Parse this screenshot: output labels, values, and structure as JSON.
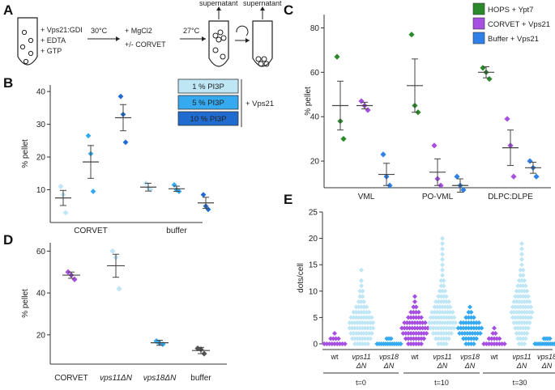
{
  "panel_labels": [
    "A",
    "B",
    "C",
    "D",
    "E"
  ],
  "panelA": {
    "tube1_lines": [
      "+ Vps21:GDI",
      "+ EDTA",
      "+ GTP"
    ],
    "step1_temp": "30°C",
    "step2_add": [
      "+ MgCl2",
      "+/- CORVET"
    ],
    "step2_temp": "27°C",
    "supernatant_1": "supernatant",
    "supernatant_2": "supernatant"
  },
  "chart_data": [
    {
      "id": "B",
      "type": "scatter",
      "ylabel": "% pellet",
      "ylim": [
        0,
        42
      ],
      "yticks": [
        10,
        20,
        30,
        40
      ],
      "groups": [
        "CORVET",
        "buffer"
      ],
      "legend": [
        "1 % PI3P",
        "5 % PI3P",
        "10 % PI3P"
      ],
      "legend_suffix": "+ Vps21",
      "colors": [
        "#bfe6f5",
        "#36aaf0",
        "#1f6bd0"
      ],
      "series": [
        {
          "group": "CORVET",
          "name": "1 % PI3P",
          "points": [
            11,
            8.5,
            3
          ],
          "mean": 7.5,
          "sem": 2.3
        },
        {
          "group": "CORVET",
          "name": "5 % PI3P",
          "points": [
            26.5,
            21,
            9.5
          ],
          "mean": 18.5,
          "sem": 5.0
        },
        {
          "group": "CORVET",
          "name": "10 % PI3P",
          "points": [
            38.5,
            33,
            24.5
          ],
          "mean": 32,
          "sem": 4.0
        },
        {
          "group": "buffer",
          "name": "1 % PI3P",
          "points": [
            12,
            10.5,
            10
          ],
          "mean": 10.8,
          "sem": 1.2
        },
        {
          "group": "buffer",
          "name": "5 % PI3P",
          "points": [
            11.5,
            10,
            9.5
          ],
          "mean": 10.3,
          "sem": 0.8
        },
        {
          "group": "buffer",
          "name": "10 % PI3P",
          "points": [
            8.5,
            5,
            4
          ],
          "mean": 6,
          "sem": 1.7
        }
      ]
    },
    {
      "id": "C",
      "type": "scatter",
      "ylabel": "% pellet",
      "ylim": [
        8,
        86
      ],
      "yticks": [
        20,
        40,
        60,
        80
      ],
      "groups": [
        "VML",
        "PO-VML",
        "DLPC:DLPE"
      ],
      "legend": [
        "HOPS + Ypt7",
        "CORVET + Vps21",
        "Buffer + Vps21"
      ],
      "colors": [
        "#2a8a2a",
        "#a64fe0",
        "#2f80e8"
      ],
      "series": [
        {
          "group": "VML",
          "name": "HOPS + Ypt7",
          "points": [
            67,
            38,
            30
          ],
          "mean": 45,
          "sem": 11
        },
        {
          "group": "VML",
          "name": "CORVET + Vps21",
          "points": [
            47,
            45,
            43
          ],
          "mean": 45,
          "sem": 1.5
        },
        {
          "group": "VML",
          "name": "Buffer + Vps21",
          "points": [
            23,
            13,
            9
          ],
          "mean": 14,
          "sem": 5
        },
        {
          "group": "PO-VML",
          "name": "HOPS + Ypt7",
          "points": [
            77,
            45,
            42
          ],
          "mean": 54,
          "sem": 12
        },
        {
          "group": "PO-VML",
          "name": "CORVET + Vps21",
          "points": [
            27,
            12,
            9
          ],
          "mean": 15,
          "sem": 6
        },
        {
          "group": "PO-VML",
          "name": "Buffer + Vps21",
          "points": [
            13,
            9,
            7
          ],
          "mean": 9,
          "sem": 3
        },
        {
          "group": "DLPC:DLPE",
          "name": "HOPS + Ypt7",
          "points": [
            62,
            60,
            57
          ],
          "mean": 60,
          "sem": 2.5
        },
        {
          "group": "DLPC:DLPE",
          "name": "CORVET + Vps21",
          "points": [
            39,
            27,
            13
          ],
          "mean": 26,
          "sem": 8
        },
        {
          "group": "DLPC:DLPE",
          "name": "Buffer + Vps21",
          "points": [
            20,
            17,
            13
          ],
          "mean": 17,
          "sem": 2.5
        }
      ]
    },
    {
      "id": "D",
      "type": "scatter",
      "ylabel": "% pellet",
      "ylim": [
        6,
        64
      ],
      "yticks": [
        20,
        40,
        60
      ],
      "categories": [
        "CORVET",
        "vps11ΔN",
        "vps18ΔN",
        "buffer"
      ],
      "colors": [
        "#a64fe0",
        "#bfe6f5",
        "#36aaf0",
        "#555555"
      ],
      "series": [
        {
          "name": "CORVET",
          "points": [
            50,
            48.5,
            46.5
          ],
          "mean": 48.5,
          "sem": 1.5
        },
        {
          "name": "vps11ΔN",
          "points": [
            60,
            57,
            42
          ],
          "mean": 53,
          "sem": 5.5
        },
        {
          "name": "vps18ΔN",
          "points": [
            17,
            16,
            15.5
          ],
          "mean": 16.2,
          "sem": 1.2
        },
        {
          "name": "buffer",
          "points": [
            13.5,
            13,
            11
          ],
          "mean": 12.5,
          "sem": 1.5
        }
      ]
    },
    {
      "id": "E",
      "type": "scatter",
      "ylabel": "dots/cell",
      "ylim": [
        0,
        25
      ],
      "yticks": [
        0,
        5,
        10,
        15,
        20,
        25
      ],
      "categories": [
        "wt",
        "vps11ΔN",
        "vps18ΔN"
      ],
      "timepoints": [
        "t=0",
        "t=10",
        "t=30"
      ],
      "colors": [
        "#a64fe0",
        "#bfe6f5",
        "#36aaf0"
      ],
      "counts": [
        [
          [
            9,
            4,
            1
          ],
          [
            6,
            8,
            9,
            10,
            10,
            9,
            7,
            5,
            3,
            2,
            2,
            1,
            1,
            0,
            1
          ],
          [
            12,
            3
          ]
        ],
        [
          [
            6,
            8,
            10,
            11,
            9,
            6,
            4,
            2,
            1,
            1
          ],
          [
            4,
            6,
            8,
            10,
            11,
            10,
            9,
            7,
            6,
            4,
            3,
            2,
            2,
            1,
            1,
            1,
            1,
            1,
            1,
            1,
            1
          ],
          [
            4,
            6,
            9,
            10,
            8,
            4,
            2,
            1
          ]
        ],
        [
          [
            9,
            5,
            2,
            1
          ],
          [
            3,
            4,
            5,
            6,
            7,
            8,
            9,
            8,
            7,
            6,
            5,
            4,
            3,
            2,
            2,
            1,
            1,
            1,
            1,
            1
          ],
          [
            13,
            4
          ]
        ]
      ]
    }
  ]
}
